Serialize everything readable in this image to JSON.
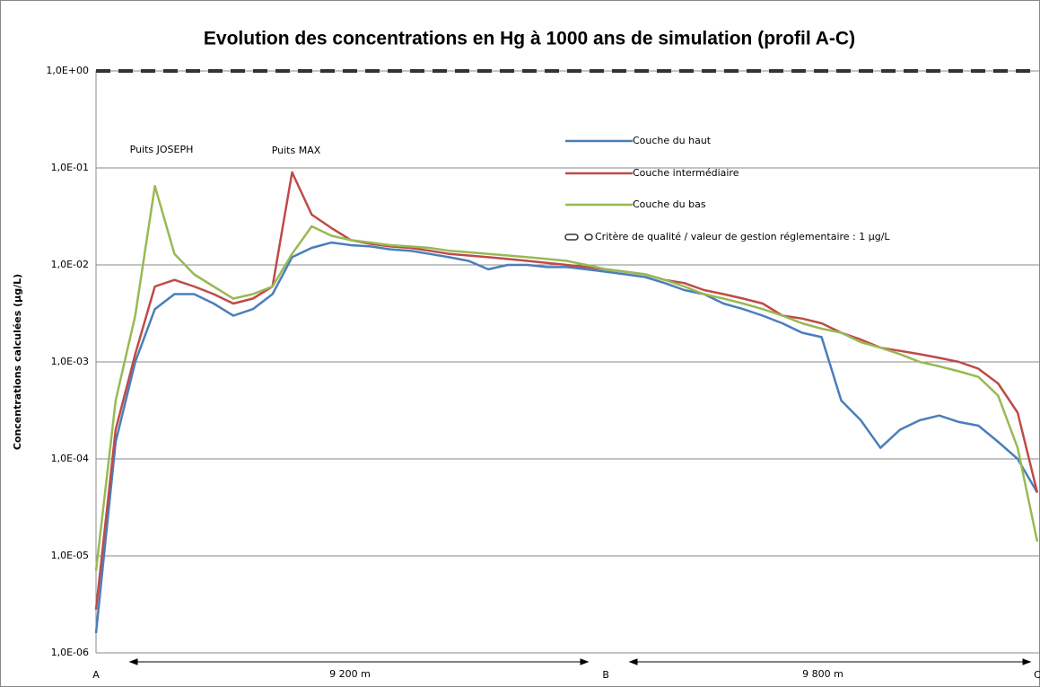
{
  "chart_data": {
    "type": "line",
    "title": "Evolution des concentrations en Hg à 1000 ans de simulation (profil A-C)",
    "ylabel": "Concentrations calculées (µg/L)",
    "log_scale": true,
    "grid": true,
    "legend": "top-right",
    "categories": [
      "A",
      null,
      null,
      null,
      null,
      null,
      null,
      null,
      null,
      null,
      null,
      null,
      null,
      null,
      null,
      null,
      null,
      null,
      null,
      null,
      null,
      null,
      null,
      null,
      null,
      null,
      "B",
      null,
      null,
      null,
      null,
      null,
      null,
      null,
      null,
      null,
      null,
      null,
      null,
      null,
      null,
      null,
      null,
      null,
      null,
      null,
      null,
      null,
      "C"
    ],
    "ylim": [
      1e-06,
      1
    ],
    "yticks": [
      {
        "value": 1e-06,
        "label": "1,0E-06"
      },
      {
        "value": 1e-05,
        "label": "1,0E-05"
      },
      {
        "value": 0.0001,
        "label": "1,0E-04"
      },
      {
        "value": 0.001,
        "label": "1,0E-03"
      },
      {
        "value": 0.01,
        "label": "1,0E-02"
      },
      {
        "value": 0.1,
        "label": "1,0E-01"
      },
      {
        "value": 1,
        "label": "1,0E+00"
      }
    ],
    "annotations": [
      "Puits JOSEPH",
      "Puits MAX",
      "9 200 m",
      "9 800 m"
    ],
    "series": [
      {
        "name": "Couche du haut",
        "color": "#4a7ebb",
        "values": [
          1.6e-06,
          0.00015,
          0.001,
          0.0035,
          0.005,
          0.005,
          0.004,
          0.003,
          0.0035,
          0.005,
          0.012,
          0.015,
          0.017,
          0.016,
          0.0155,
          0.0145,
          0.014,
          0.013,
          0.012,
          0.011,
          0.009,
          0.01,
          0.01,
          0.0095,
          0.0095,
          0.009,
          0.0085,
          0.008,
          0.0075,
          0.0065,
          0.0055,
          0.005,
          0.004,
          0.0035,
          0.003,
          0.0025,
          0.002,
          0.0018,
          0.0004,
          0.00025,
          0.00013,
          0.0002,
          0.00025,
          0.00028,
          0.00024,
          0.00022,
          0.00015,
          0.0001,
          4.5e-05
        ]
      },
      {
        "name": "Couche intermédiaire",
        "color": "#be4b48",
        "values": [
          2.8e-06,
          0.0002,
          0.0012,
          0.006,
          0.007,
          0.006,
          0.005,
          0.004,
          0.0045,
          0.006,
          0.09,
          0.033,
          0.024,
          0.018,
          0.0165,
          0.0155,
          0.015,
          0.014,
          0.013,
          0.0125,
          0.012,
          0.0115,
          0.011,
          0.0105,
          0.01,
          0.0095,
          0.009,
          0.0085,
          0.008,
          0.007,
          0.0065,
          0.0055,
          0.005,
          0.0045,
          0.004,
          0.003,
          0.0028,
          0.0025,
          0.002,
          0.0017,
          0.0014,
          0.0013,
          0.0012,
          0.0011,
          0.001,
          0.00085,
          0.0006,
          0.0003,
          4.5e-05
        ]
      },
      {
        "name": "Couche du bas",
        "color": "#98b954",
        "values": [
          7e-06,
          0.0004,
          0.003,
          0.065,
          0.013,
          0.008,
          0.006,
          0.0045,
          0.005,
          0.006,
          0.013,
          0.025,
          0.02,
          0.018,
          0.017,
          0.016,
          0.0155,
          0.015,
          0.014,
          0.0135,
          0.013,
          0.0125,
          0.012,
          0.0115,
          0.011,
          0.01,
          0.009,
          0.0085,
          0.008,
          0.007,
          0.006,
          0.005,
          0.0045,
          0.004,
          0.0035,
          0.003,
          0.0025,
          0.0022,
          0.002,
          0.0016,
          0.0014,
          0.0012,
          0.001,
          0.0009,
          0.0008,
          0.0007,
          0.00045,
          0.00013,
          1.4e-05
        ]
      },
      {
        "name": "Critère de qualité / valeur de gestion réglementaire : 1 µg/L",
        "color": "#333333",
        "dashed": true,
        "values": [
          1,
          1,
          1,
          1,
          1,
          1,
          1,
          1,
          1,
          1,
          1,
          1,
          1,
          1,
          1,
          1,
          1,
          1,
          1,
          1,
          1,
          1,
          1,
          1,
          1,
          1,
          1,
          1,
          1,
          1,
          1,
          1,
          1,
          1,
          1,
          1,
          1,
          1,
          1,
          1,
          1,
          1,
          1,
          1,
          1,
          1,
          1,
          1,
          1
        ]
      }
    ]
  }
}
